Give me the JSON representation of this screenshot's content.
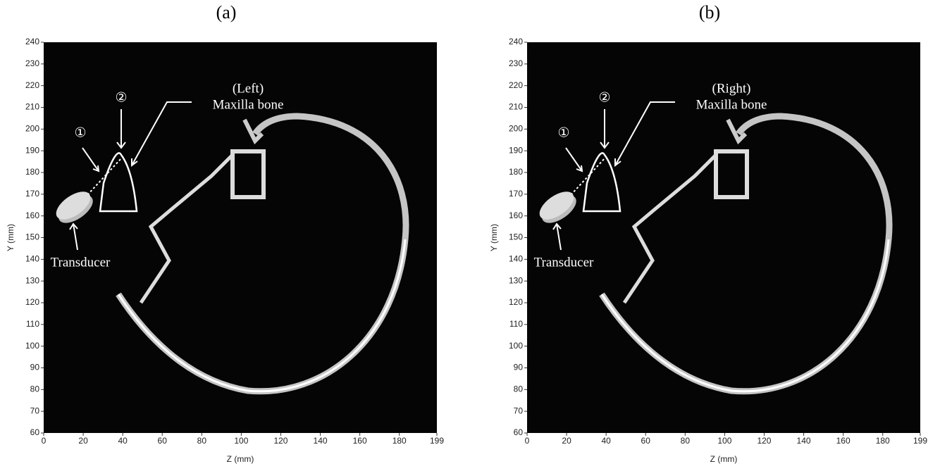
{
  "chart_data": [
    {
      "type": "image",
      "title": "(a)",
      "xlabel": "Z (mm)",
      "ylabel": "Y (mm)",
      "xlim": [
        0,
        199
      ],
      "ylim": [
        60,
        240
      ],
      "xticks": [
        0,
        20,
        40,
        60,
        80,
        100,
        120,
        140,
        160,
        180,
        199
      ],
      "yticks": [
        60,
        70,
        80,
        90,
        100,
        110,
        120,
        130,
        140,
        150,
        160,
        170,
        180,
        190,
        200,
        210,
        220,
        230,
        240
      ],
      "annotations": [
        "①",
        "②",
        "(Left)",
        "Maxilla bone",
        "Transducer"
      ]
    },
    {
      "type": "image",
      "title": "(b)",
      "xlabel": "Z (mm)",
      "ylabel": "Y (mm)",
      "xlim": [
        0,
        199
      ],
      "ylim": [
        60,
        240
      ],
      "xticks": [
        0,
        20,
        40,
        60,
        80,
        100,
        120,
        140,
        160,
        180,
        199
      ],
      "yticks": [
        60,
        70,
        80,
        90,
        100,
        110,
        120,
        130,
        140,
        150,
        160,
        170,
        180,
        190,
        200,
        210,
        220,
        230,
        240
      ],
      "annotations": [
        "①",
        "②",
        "(Right)",
        "Maxilla bone",
        "Transducer"
      ]
    }
  ]
}
